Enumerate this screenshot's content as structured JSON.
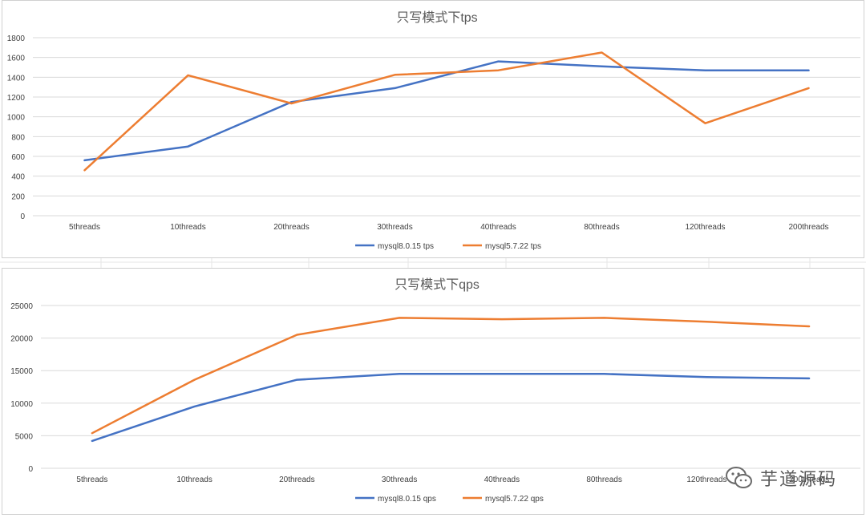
{
  "colors": {
    "series_1": "#4472c4",
    "series_2": "#ed7d31",
    "grid": "#d9d9d9",
    "text": "#595959",
    "title": "#595959"
  },
  "watermark": {
    "text": "芋道源码",
    "icon": "wechat-logo-icon"
  },
  "chart_data": [
    {
      "type": "line",
      "title": "只写模式下tps",
      "xlabel": "",
      "ylabel": "",
      "categories": [
        "5threads",
        "10threads",
        "20threads",
        "30threads",
        "40threads",
        "80threads",
        "120threads",
        "200threads"
      ],
      "yticks": [
        "0",
        "200",
        "400",
        "600",
        "800",
        "1000",
        "1200",
        "1400",
        "1600",
        "1800"
      ],
      "ylim": [
        0,
        1800
      ],
      "grid": true,
      "legend_position": "bottom",
      "series": [
        {
          "name": "mysql8.0.15 tps",
          "color": "#4472c4",
          "values": [
            560,
            700,
            1150,
            1290,
            1560,
            1510,
            1470,
            1470
          ]
        },
        {
          "name": "mysql5.7.22 tps",
          "color": "#ed7d31",
          "values": [
            460,
            1420,
            1135,
            1425,
            1470,
            1650,
            935,
            1290
          ]
        }
      ]
    },
    {
      "type": "line",
      "title": "只写模式下qps",
      "xlabel": "",
      "ylabel": "",
      "categories": [
        "5threads",
        "10threads",
        "20threads",
        "30threads",
        "40threads",
        "80threads",
        "120threads",
        "200threads"
      ],
      "yticks": [
        "0",
        "5000",
        "10000",
        "15000",
        "20000",
        "25000"
      ],
      "ylim": [
        0,
        25000
      ],
      "grid": true,
      "legend_position": "bottom",
      "series": [
        {
          "name": "mysql8.0.15 qps",
          "color": "#4472c4",
          "values": [
            4200,
            9500,
            13600,
            14500,
            14500,
            14500,
            14000,
            13800
          ]
        },
        {
          "name": "mysql5.7.22 qps",
          "color": "#ed7d31",
          "values": [
            5400,
            13600,
            20500,
            23100,
            22900,
            23100,
            22500,
            21800
          ]
        }
      ]
    }
  ]
}
